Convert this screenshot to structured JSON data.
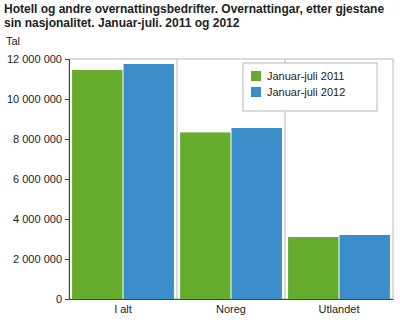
{
  "chart_data": {
    "type": "bar",
    "title": "Hotell og andre overnattingsbedrifter. Overnattingar, etter gjestane sin nasjonalitet. Januar-juli. 2011 og 2012",
    "y_label": "Tal",
    "categories": [
      "I alt",
      "Noreg",
      "Utlandet"
    ],
    "series": [
      {
        "name": "Januar-juli 2011",
        "color": "#66ad2e",
        "values": [
          11450000,
          8330000,
          3100000
        ]
      },
      {
        "name": "Januar-juli 2012",
        "color": "#3a8dc8",
        "values": [
          11750000,
          8550000,
          3200000
        ]
      }
    ],
    "ylim": [
      0,
      12000000
    ],
    "yticks": [
      0,
      {
        "value": 2000000,
        "label": "2 000 000"
      },
      {
        "value": 4000000,
        "label": "4 000 000"
      },
      {
        "value": 6000000,
        "label": "6 000 000"
      },
      {
        "value": 8000000,
        "label": "8 000 000"
      },
      {
        "value": 10000000,
        "label": "10 000 000"
      },
      {
        "value": 12000000,
        "label": "12 000 000"
      }
    ],
    "grid": false,
    "legend": "top-right"
  }
}
